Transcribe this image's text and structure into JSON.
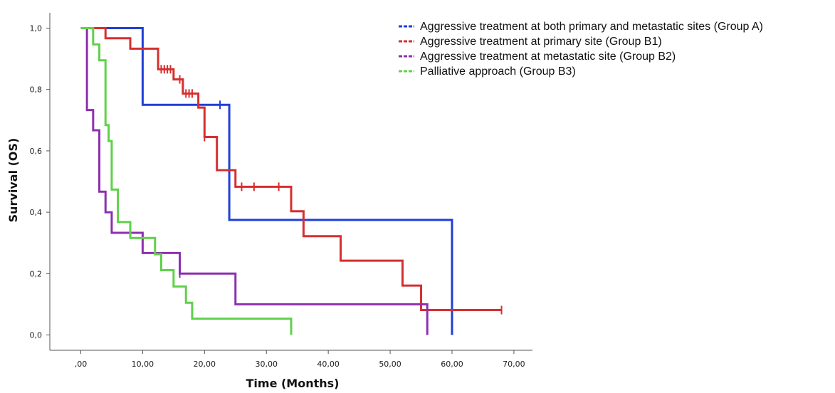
{
  "chart_data": {
    "type": "line",
    "subtype": "kaplan-meier step plot",
    "xlabel": "Time (Months)",
    "ylabel": "Survival (OS)",
    "xlim": [
      -5,
      73
    ],
    "ylim": [
      -0.05,
      1.05
    ],
    "x_ticks": [
      0,
      10,
      20,
      30,
      40,
      50,
      60,
      70
    ],
    "x_tick_labels": [
      ",00",
      "10,00",
      "20,00",
      "30,00",
      "40,00",
      "50,00",
      "60,00",
      "70,00"
    ],
    "y_ticks": [
      0,
      0.2,
      0.4,
      0.6,
      0.8,
      1.0
    ],
    "y_tick_labels": [
      "0,0",
      "0,2",
      "0,4",
      "0,6",
      "0,8",
      "1,0"
    ],
    "grid": false,
    "legend_position": "top-right",
    "series": [
      {
        "name": "Aggressive treatment at both primary and metastatic sites (Group A)",
        "color": "#1f3fd8",
        "steps": [
          [
            0,
            1.0
          ],
          [
            10,
            0.75
          ],
          [
            24,
            0.375
          ],
          [
            60,
            0.0
          ]
        ],
        "end_x": 60,
        "censored": [
          [
            22.5,
            0.75
          ]
        ]
      },
      {
        "name": "Aggressive treatment at primary site (Group B1)",
        "color": "#d62f2f",
        "steps": [
          [
            0,
            1.0
          ],
          [
            4,
            0.967
          ],
          [
            8,
            0.933
          ],
          [
            12.5,
            0.866
          ],
          [
            15,
            0.833
          ],
          [
            16.5,
            0.787
          ],
          [
            19,
            0.741
          ],
          [
            20,
            0.645
          ],
          [
            22,
            0.537
          ],
          [
            25,
            0.483
          ],
          [
            34,
            0.403
          ],
          [
            36,
            0.322
          ],
          [
            42,
            0.242
          ],
          [
            52,
            0.161
          ],
          [
            55,
            0.081
          ]
        ],
        "end_x": 68,
        "censored": [
          [
            13,
            0.866
          ],
          [
            13.5,
            0.866
          ],
          [
            14,
            0.866
          ],
          [
            14.5,
            0.866
          ],
          [
            16,
            0.833
          ],
          [
            17,
            0.787
          ],
          [
            17.5,
            0.787
          ],
          [
            18,
            0.787
          ],
          [
            20,
            0.645
          ],
          [
            26,
            0.483
          ],
          [
            28,
            0.483
          ],
          [
            32,
            0.483
          ],
          [
            68,
            0.081
          ]
        ]
      },
      {
        "name": "Aggressive treatment at metastatic site (Group B2)",
        "color": "#8e2fb0",
        "steps": [
          [
            0,
            1.0
          ],
          [
            1,
            0.733
          ],
          [
            2,
            0.667
          ],
          [
            3,
            0.467
          ],
          [
            4,
            0.4
          ],
          [
            5,
            0.333
          ],
          [
            10,
            0.267
          ],
          [
            16,
            0.2
          ],
          [
            25,
            0.1
          ],
          [
            56,
            0.0
          ]
        ],
        "end_x": 56,
        "censored": [
          [
            16,
            0.2
          ]
        ]
      },
      {
        "name": "Palliative approach (Group B3)",
        "color": "#5fd14a",
        "steps": [
          [
            0,
            1.0
          ],
          [
            2,
            0.947
          ],
          [
            3,
            0.895
          ],
          [
            4,
            0.684
          ],
          [
            4.5,
            0.632
          ],
          [
            5,
            0.474
          ],
          [
            6,
            0.421
          ],
          [
            6,
            0.368
          ],
          [
            8,
            0.316
          ],
          [
            12,
            0.263
          ],
          [
            13,
            0.211
          ],
          [
            15,
            0.158
          ],
          [
            17,
            0.105
          ],
          [
            18,
            0.053
          ],
          [
            34,
            0.0
          ]
        ],
        "end_x": 34,
        "censored": [
          [
            6,
            0.421
          ]
        ]
      }
    ]
  }
}
